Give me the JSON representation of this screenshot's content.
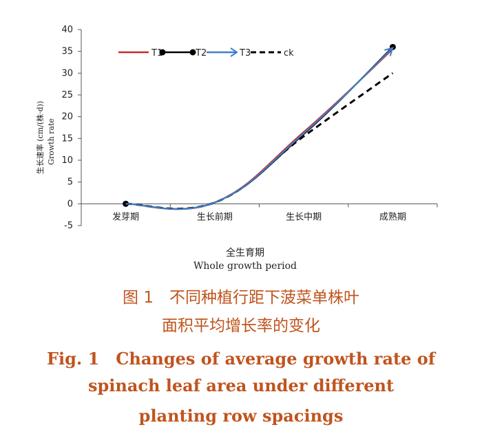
{
  "chart_data": {
    "type": "line",
    "categories": [
      "发芽期",
      "生长前期",
      "生长中期",
      "成熟期"
    ],
    "ylim": [
      -5,
      40
    ],
    "yticks": [
      "-5",
      "0",
      "5",
      "10",
      "15",
      "20",
      "25",
      "30",
      "35",
      "40"
    ],
    "ylabel_cn": "生长速率 (cm/(株·d))",
    "ylabel_en": "Growth rate",
    "xlabel_cn": "全生育期",
    "xlabel_en": "Whole growth period",
    "grid": false,
    "legend_position": "top-left",
    "series": [
      {
        "name": "T1",
        "color": "#cc2a2a",
        "marker": "none",
        "dash": false,
        "values": [
          0,
          0.3,
          16.5,
          35.5
        ]
      },
      {
        "name": "T2",
        "color": "#000000",
        "marker": "circle",
        "dash": false,
        "values": [
          0,
          0.3,
          16.0,
          36.0
        ]
      },
      {
        "name": "T3",
        "color": "#3f7fc7",
        "marker": "arrow",
        "dash": false,
        "values": [
          0,
          0.3,
          16.2,
          35.8
        ]
      },
      {
        "name": "ck",
        "color": "#000000",
        "marker": "none",
        "dash": true,
        "values": [
          0,
          0.3,
          15.5,
          30.0
        ]
      }
    ]
  },
  "caption": {
    "cn_line1": "图 1　不同种植行距下菠菜单株叶",
    "cn_line2": "面积平均增长率的变化",
    "en_line1": "Fig. 1　Changes of average growth rate of",
    "en_line2": "spinach leaf area under different",
    "en_line3": "planting row spacings"
  }
}
